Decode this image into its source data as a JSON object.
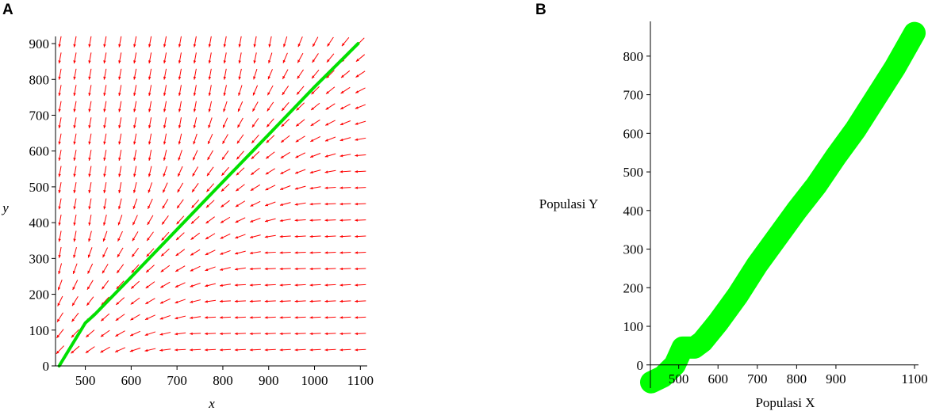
{
  "chart_data": [
    {
      "panel_label": "A",
      "type": "line",
      "title": "",
      "xlabel": "x",
      "ylabel": "y",
      "xlim": [
        435,
        1115
      ],
      "ylim": [
        0,
        920
      ],
      "x_ticks": [
        500,
        600,
        700,
        800,
        900,
        1000,
        1100
      ],
      "y_ticks": [
        0,
        100,
        200,
        300,
        400,
        500,
        600,
        700,
        800,
        900
      ],
      "direction_field": {
        "color": "#ff0000",
        "x_range": [
          445,
          1100
        ],
        "y_range": [
          45,
          905
        ],
        "columns": 21,
        "rows": 20,
        "note_equilibrium_slope": 1.33
      },
      "series": [
        {
          "color": "#00e000",
          "x": [
            443,
            500,
            520,
            600,
            700,
            800,
            900,
            1000,
            1095
          ],
          "y": [
            0,
            120,
            143,
            248,
            381,
            514,
            646,
            779,
            900
          ]
        }
      ]
    },
    {
      "panel_label": "B",
      "type": "line",
      "title": "",
      "xlabel": "Populasi X",
      "ylabel": "Populasi Y",
      "xlim": [
        428,
        1110
      ],
      "ylim": [
        -60,
        890
      ],
      "x_ticks": [
        500,
        600,
        700,
        800,
        900,
        1100
      ],
      "x_tick_labels": [
        "500",
        "600",
        "700",
        "800",
        "900",
        "1100"
      ],
      "y_ticks": [
        0,
        100,
        200,
        300,
        400,
        500,
        600,
        700,
        800
      ],
      "series": [
        {
          "color": "#00ff00",
          "band_half_width": 14,
          "x": [
            430,
            460,
            490,
            510,
            540,
            560,
            600,
            650,
            700,
            750,
            800,
            850,
            900,
            950,
            1000,
            1050,
            1100
          ],
          "y": [
            -45,
            -30,
            0,
            45,
            45,
            60,
            110,
            180,
            260,
            330,
            400,
            465,
            540,
            610,
            690,
            770,
            860
          ]
        }
      ]
    }
  ]
}
